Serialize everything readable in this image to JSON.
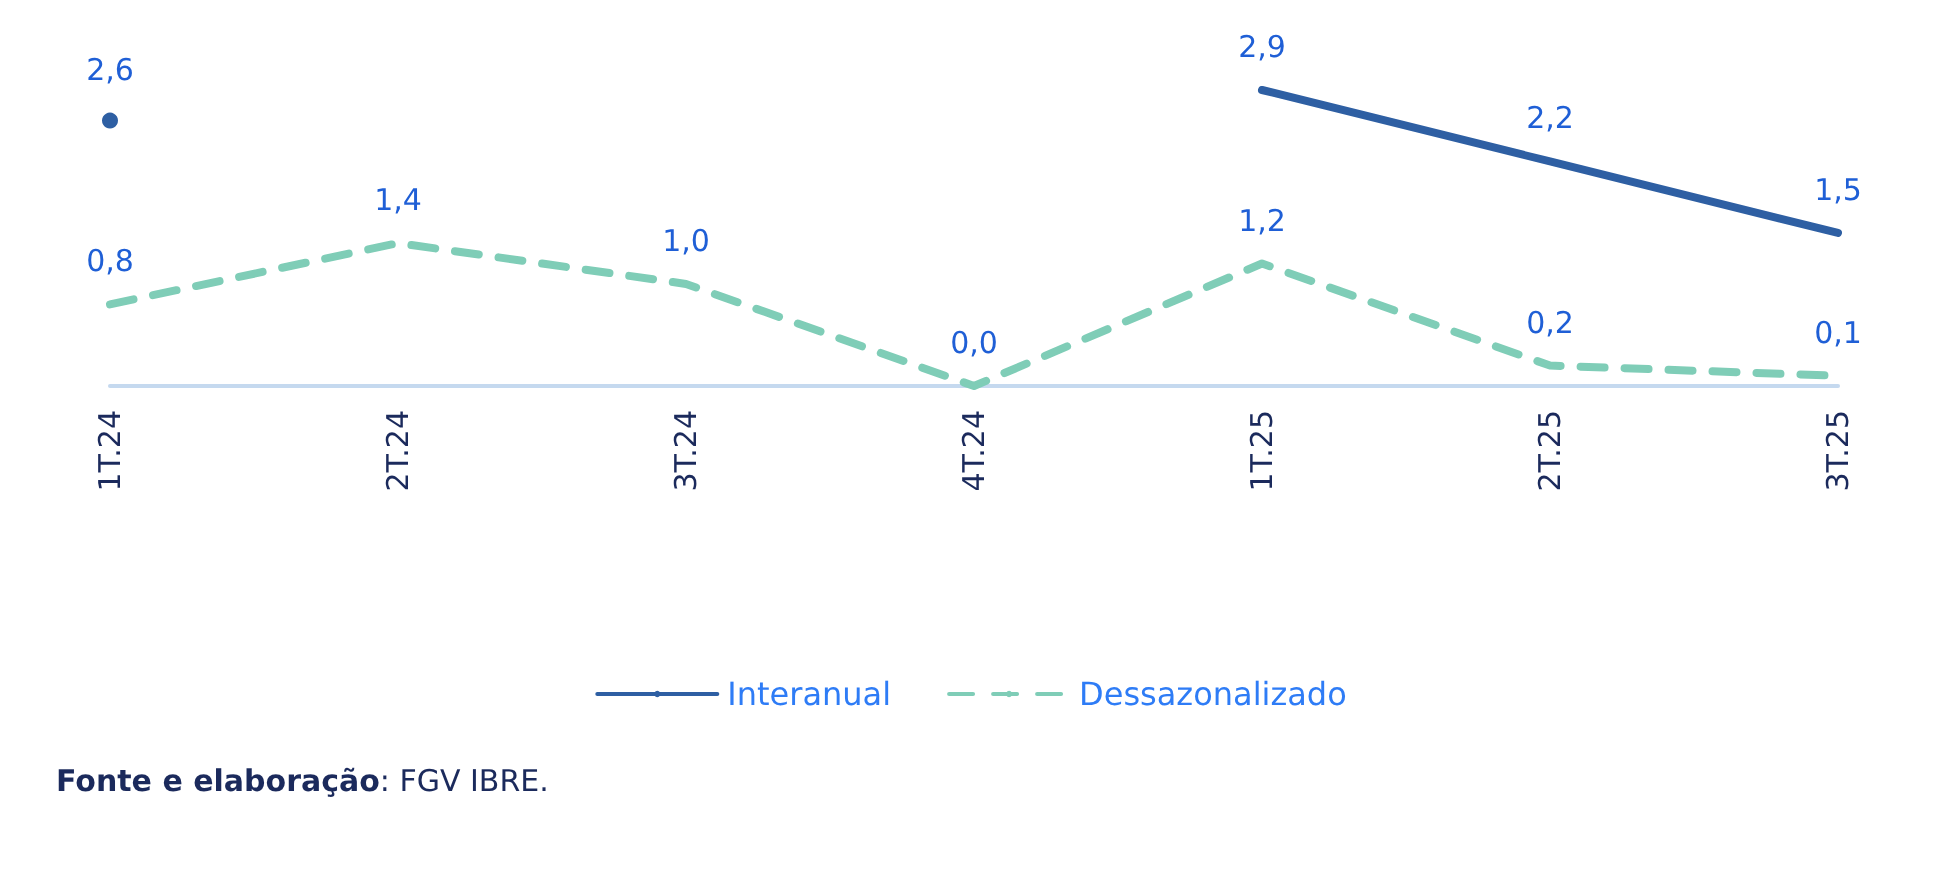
{
  "chart_data": {
    "type": "line",
    "categories": [
      "1T.24",
      "2T.24",
      "3T.24",
      "4T.24",
      "1T.25",
      "2T.25",
      "3T.25"
    ],
    "series": [
      {
        "name": "Interanual",
        "color": "#2e5fa3",
        "line_style": "solid",
        "values": [
          2.6,
          null,
          null,
          null,
          2.9,
          2.2,
          1.5
        ],
        "value_labels": [
          "2,6",
          null,
          null,
          null,
          "2,9",
          "2,2",
          "1,5"
        ]
      },
      {
        "name": "Dessazonalizado",
        "color": "#7fcdb7",
        "line_style": "dashed",
        "values": [
          0.8,
          1.4,
          1.0,
          0.0,
          1.2,
          0.2,
          0.1
        ],
        "value_labels": [
          "0,8",
          "1,4",
          "1,0",
          "0,0",
          "1,2",
          "0,2",
          "0,1"
        ]
      }
    ],
    "marker": "none",
    "grid": false,
    "legend": "bottom",
    "annotations": [
      "Fonte e elaboração: FGV IBRE."
    ]
  }
}
